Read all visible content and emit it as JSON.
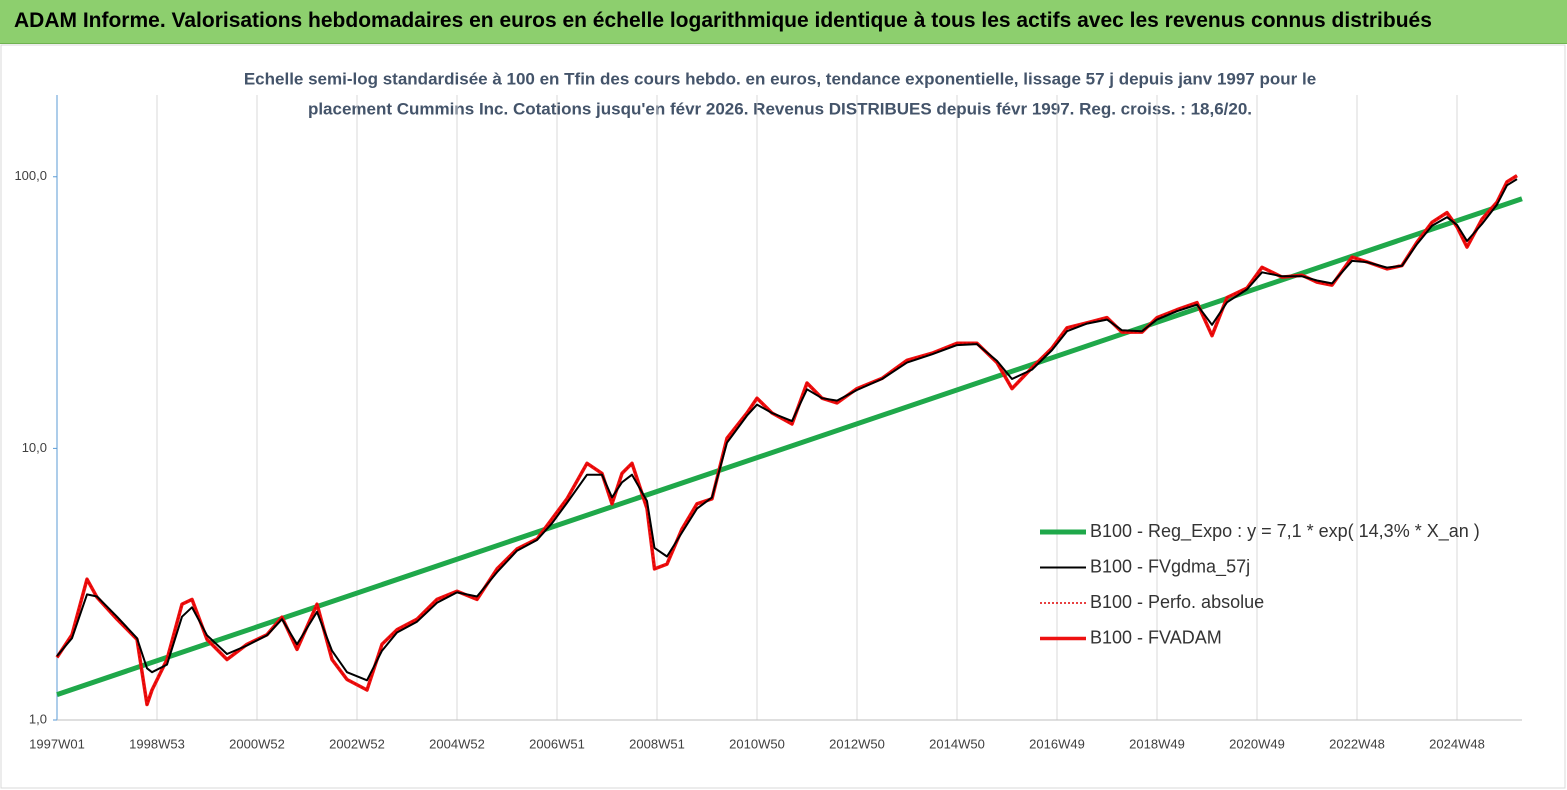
{
  "header": {
    "title": "ADAM Informe. Valorisations hebdomadaires en euros en échelle logarithmique identique à tous les actifs avec les revenus connus distribués"
  },
  "chart_data": {
    "type": "line",
    "subtitle": [
      "Echelle semi-log standardisée à 100 en Tfin des cours hebdo. en euros, tendance exponentielle, lissage 57 j depuis janv 1997 pour le",
      "placement Cummins Inc. Cotations jusqu'en févr 2026. Revenus DISTRIBUES depuis févr 1997. Reg. croiss. : 18,6/20."
    ],
    "yscale": "log",
    "grid": "x",
    "legend": "lower right",
    "xlim": [
      1997,
      2026.3
    ],
    "ylim": [
      1,
      200
    ],
    "xticks": [
      {
        "value": 1997,
        "label": "1997W01"
      },
      {
        "value": 1999,
        "label": "1998W53"
      },
      {
        "value": 2001,
        "label": "2000W52"
      },
      {
        "value": 2003,
        "label": "2002W52"
      },
      {
        "value": 2005,
        "label": "2004W52"
      },
      {
        "value": 2007,
        "label": "2006W51"
      },
      {
        "value": 2009,
        "label": "2008W51"
      },
      {
        "value": 2011,
        "label": "2010W50"
      },
      {
        "value": 2013,
        "label": "2012W50"
      },
      {
        "value": 2015,
        "label": "2014W50"
      },
      {
        "value": 2017,
        "label": "2016W49"
      },
      {
        "value": 2019,
        "label": "2018W49"
      },
      {
        "value": 2021,
        "label": "2020W49"
      },
      {
        "value": 2023,
        "label": "2022W48"
      },
      {
        "value": 2025,
        "label": "2024W48"
      }
    ],
    "yticks": [
      {
        "value": 1,
        "label": "1,0"
      },
      {
        "value": 10,
        "label": "10,0"
      },
      {
        "value": 100,
        "label": "100,0"
      }
    ],
    "x": [
      1997.0,
      1997.3,
      1997.6,
      1997.8,
      1998.2,
      1998.6,
      1998.8,
      1998.9,
      1999.2,
      1999.5,
      1999.7,
      2000.0,
      2000.4,
      2000.8,
      2001.2,
      2001.5,
      2001.8,
      2002.2,
      2002.5,
      2002.8,
      2003.2,
      2003.5,
      2003.8,
      2004.2,
      2004.6,
      2005.0,
      2005.4,
      2005.8,
      2006.2,
      2006.6,
      2006.9,
      2007.2,
      2007.6,
      2007.9,
      2008.1,
      2008.3,
      2008.5,
      2008.8,
      2008.95,
      2009.2,
      2009.5,
      2009.8,
      2010.1,
      2010.4,
      2010.8,
      2011.0,
      2011.3,
      2011.7,
      2012.0,
      2012.3,
      2012.6,
      2013.0,
      2013.5,
      2014.0,
      2014.5,
      2015.0,
      2015.4,
      2015.8,
      2016.1,
      2016.5,
      2016.9,
      2017.2,
      2017.6,
      2018.0,
      2018.3,
      2018.7,
      2019.0,
      2019.4,
      2019.8,
      2020.1,
      2020.4,
      2020.8,
      2021.1,
      2021.5,
      2021.9,
      2022.2,
      2022.5,
      2022.9,
      2023.2,
      2023.6,
      2023.9,
      2024.2,
      2024.5,
      2024.8,
      2025.0,
      2025.2,
      2025.5,
      2025.8,
      2026.0,
      2026.2
    ],
    "series": [
      {
        "name": "B100 - Reg_Expo : y = 7,1 * exp( 14,3% *  X_an )",
        "color": "#1fa84a",
        "width": 5,
        "x": [
          1997,
          2026.3
        ],
        "values": [
          1.24,
          83
        ]
      },
      {
        "name": "B100 - FVgdma_57j",
        "color": "#000000",
        "width": 2,
        "values": [
          1.72,
          2.0,
          2.9,
          2.85,
          2.4,
          2.0,
          1.55,
          1.5,
          1.6,
          2.4,
          2.6,
          2.05,
          1.75,
          1.88,
          2.05,
          2.35,
          1.9,
          2.5,
          1.8,
          1.5,
          1.4,
          1.8,
          2.1,
          2.3,
          2.7,
          2.95,
          2.85,
          3.5,
          4.2,
          4.6,
          5.3,
          6.3,
          8.0,
          8.0,
          6.6,
          7.5,
          8.0,
          6.4,
          4.3,
          4.0,
          4.9,
          6.0,
          6.6,
          10.5,
          13.2,
          14.5,
          13.5,
          12.6,
          16.5,
          15.3,
          15.0,
          16.4,
          18.0,
          20.7,
          22.2,
          24.0,
          24.2,
          21.0,
          18.0,
          19.5,
          23.0,
          27.0,
          28.8,
          29.8,
          27.2,
          27.0,
          29.8,
          32.0,
          33.8,
          28.5,
          34.5,
          38.5,
          44.5,
          43.0,
          43.0,
          41.5,
          40.5,
          49.0,
          48.5,
          46.3,
          47.0,
          56.5,
          66.0,
          71.0,
          66.5,
          58.0,
          67.0,
          79.0,
          93.0,
          98.0
        ]
      },
      {
        "name": "B100 - Perfo. absolue",
        "color": "#e00000",
        "width": 1.5,
        "dash": true,
        "values": [
          1.7,
          2.06,
          3.3,
          2.83,
          2.35,
          1.98,
          1.14,
          1.29,
          1.67,
          2.67,
          2.78,
          1.98,
          1.67,
          1.9,
          2.06,
          2.39,
          1.82,
          2.67,
          1.67,
          1.41,
          1.29,
          1.9,
          2.15,
          2.35,
          2.78,
          2.98,
          2.78,
          3.6,
          4.26,
          4.64,
          5.5,
          6.52,
          8.81,
          8.09,
          6.25,
          8.09,
          8.81,
          6.0,
          3.6,
          3.75,
          5.05,
          6.25,
          6.52,
          10.9,
          13.5,
          15.3,
          13.5,
          12.3,
          17.4,
          15.3,
          14.7,
          16.6,
          18.1,
          21.1,
          22.4,
          24.4,
          24.4,
          20.7,
          16.6,
          19.8,
          23.4,
          27.8,
          29.0,
          30.3,
          26.8,
          26.8,
          30.3,
          32.4,
          34.4,
          26.0,
          35.9,
          38.9,
          46.4,
          42.7,
          43.4,
          40.9,
          39.9,
          50.6,
          48.6,
          45.8,
          47.1,
          57.4,
          68.0,
          73.8,
          65.4,
          55.1,
          69.8,
          80.7,
          95.8,
          101
        ]
      },
      {
        "name": "B100 - FVADAM",
        "color": "#ee1111",
        "width": 3.5,
        "values": [
          1.7,
          2.06,
          3.3,
          2.83,
          2.35,
          1.98,
          1.14,
          1.29,
          1.67,
          2.67,
          2.78,
          1.98,
          1.67,
          1.9,
          2.06,
          2.39,
          1.82,
          2.67,
          1.67,
          1.41,
          1.29,
          1.9,
          2.15,
          2.35,
          2.78,
          2.98,
          2.78,
          3.6,
          4.26,
          4.64,
          5.5,
          6.52,
          8.81,
          8.09,
          6.25,
          8.09,
          8.81,
          6.0,
          3.6,
          3.75,
          5.05,
          6.25,
          6.52,
          10.9,
          13.5,
          15.3,
          13.5,
          12.3,
          17.4,
          15.3,
          14.7,
          16.6,
          18.1,
          21.1,
          22.4,
          24.4,
          24.4,
          20.7,
          16.6,
          19.8,
          23.4,
          27.8,
          29.0,
          30.3,
          26.8,
          26.8,
          30.3,
          32.4,
          34.4,
          26.0,
          35.9,
          38.9,
          46.4,
          42.7,
          43.4,
          40.9,
          39.9,
          50.6,
          48.6,
          45.8,
          47.1,
          57.4,
          68.0,
          73.8,
          65.4,
          55.1,
          69.8,
          80.7,
          95.8,
          101
        ]
      }
    ]
  }
}
